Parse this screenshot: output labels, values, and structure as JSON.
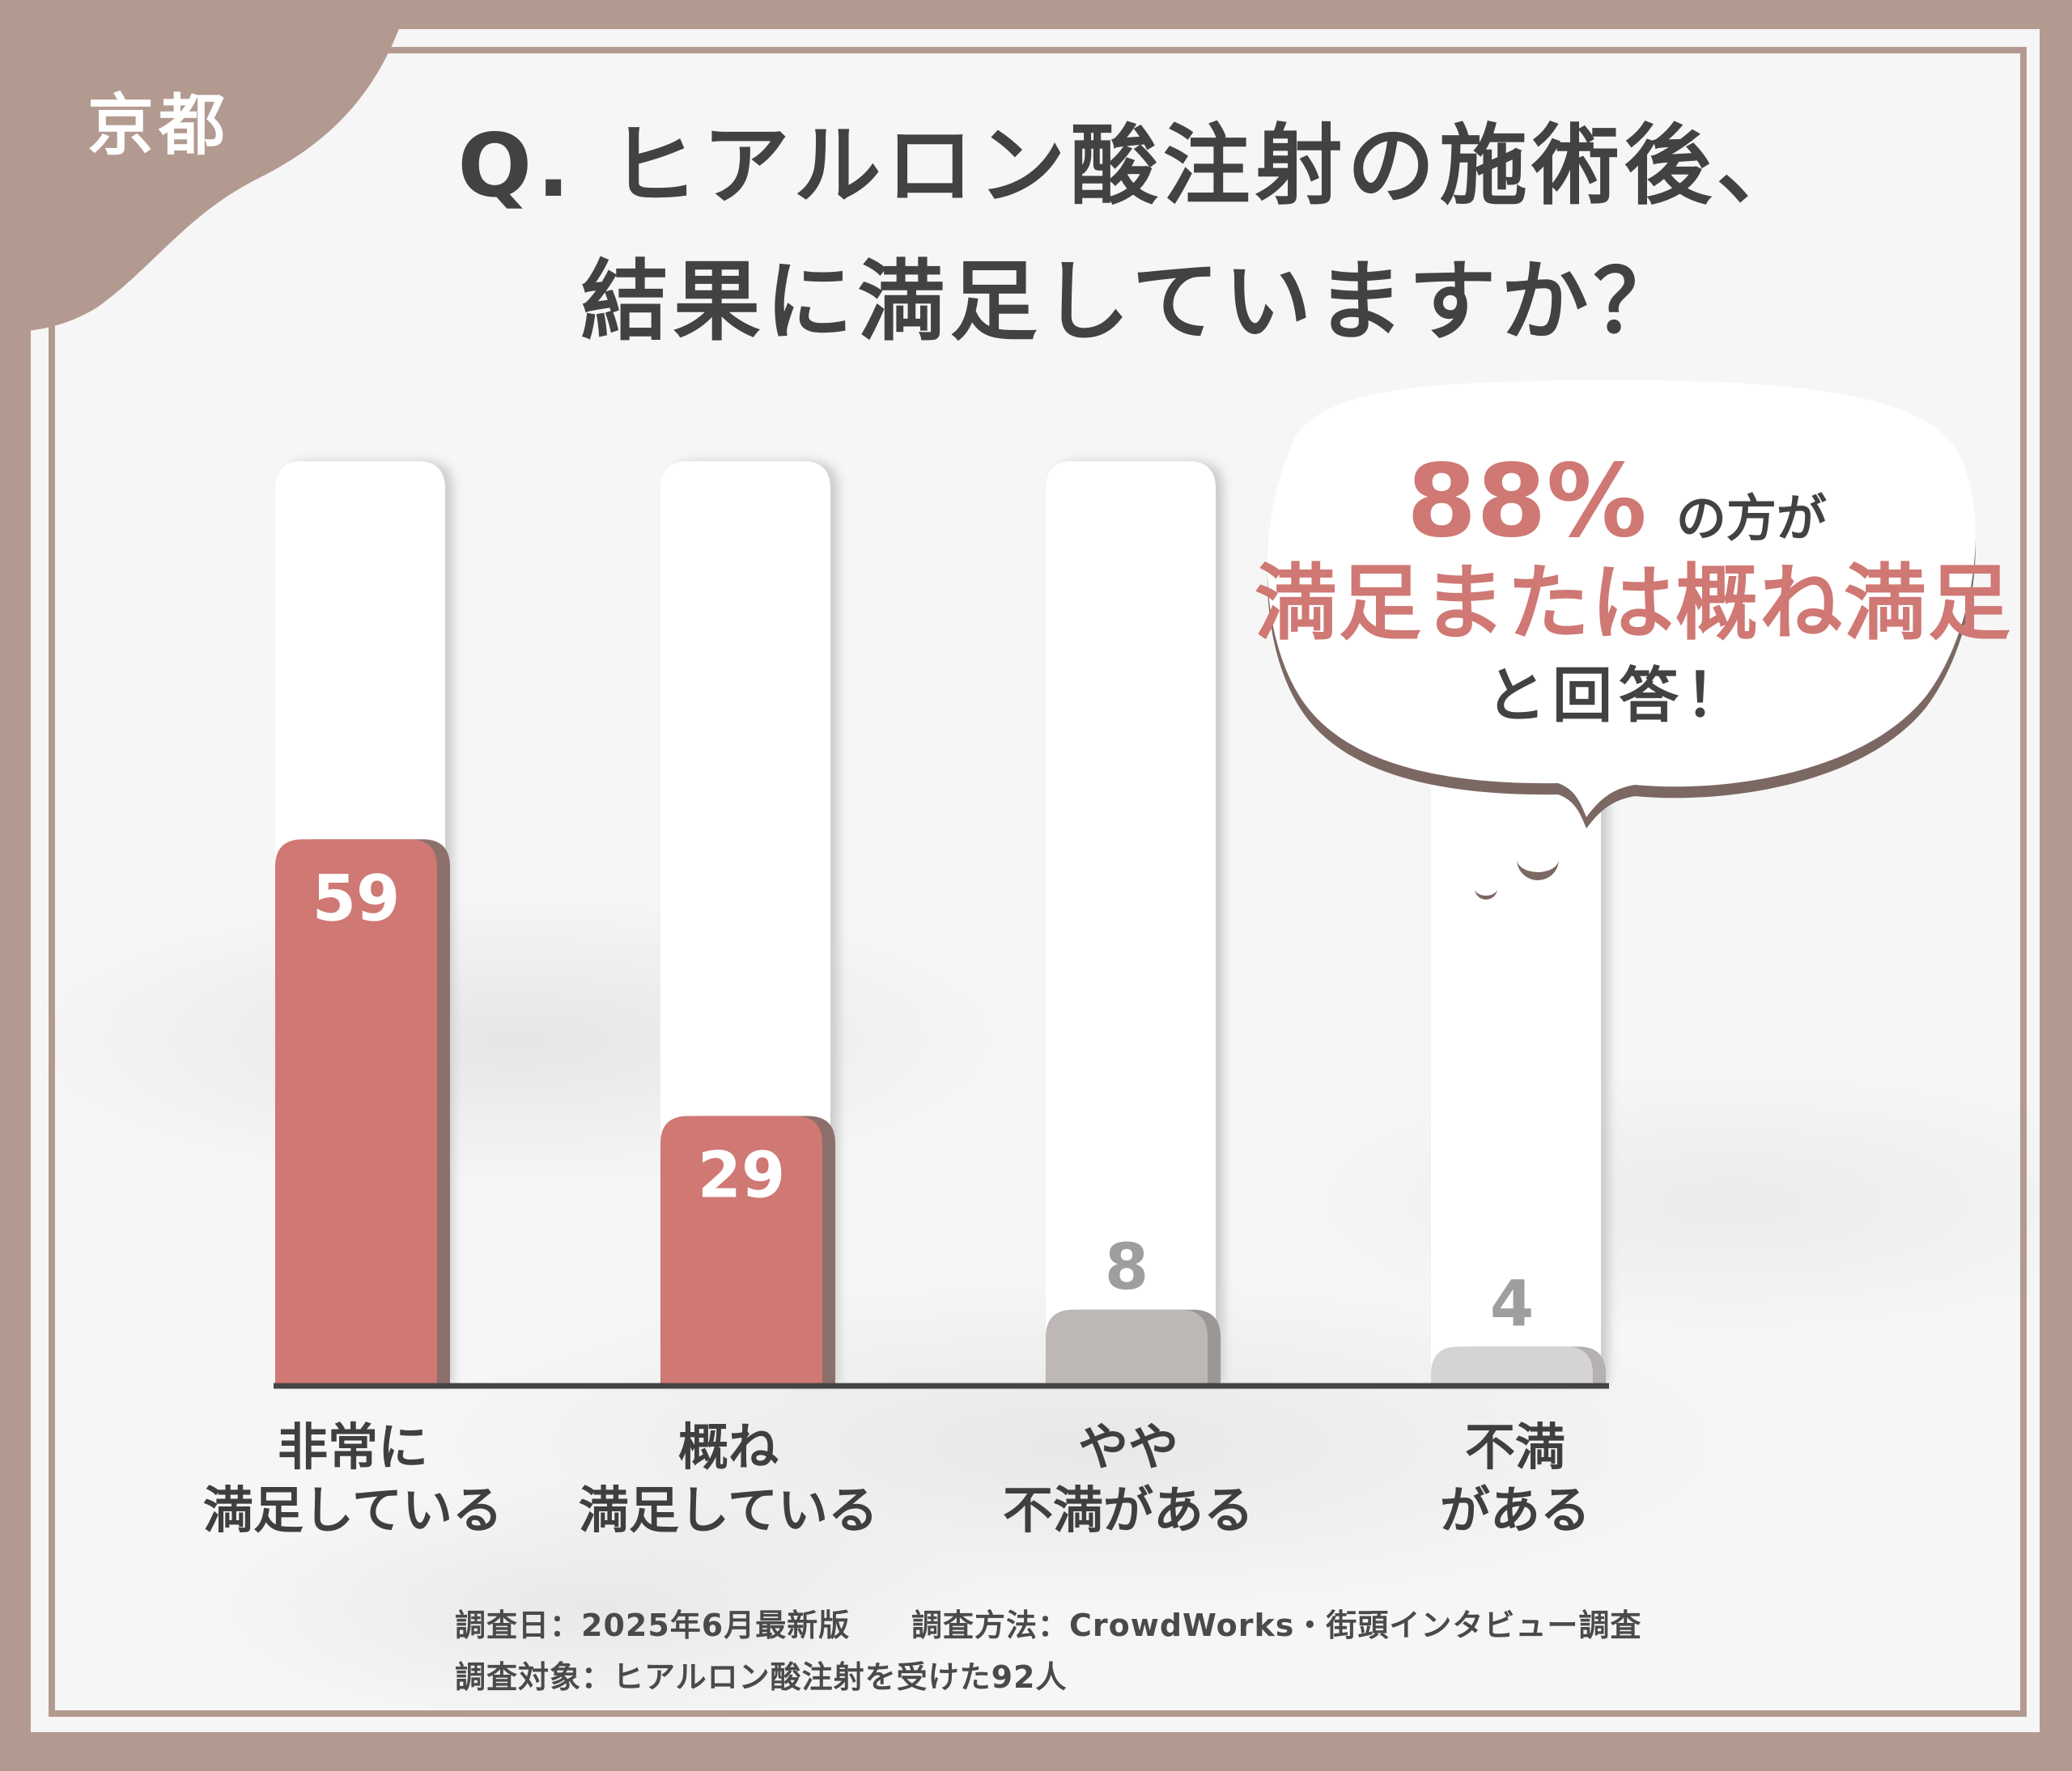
{
  "region_label": "京都",
  "title_lines": [
    "Q. ヒアルロン酸注射の施術後、",
    "結果に満足していますか？"
  ],
  "callout": {
    "percent": "88%",
    "percent_suffix": "の方が",
    "highlight": "満足または概ね満足",
    "answer": "と回答！"
  },
  "chart_data": {
    "type": "bar",
    "title": "Q. ヒアルロン酸注射の施術後、結果に満足していますか？",
    "categories": [
      "非常に 満足している",
      "概ね 満足している",
      "やや 不満がある",
      "不満 がある"
    ],
    "category_lines": [
      [
        "非常に",
        "満足している"
      ],
      [
        "概ね",
        "満足している"
      ],
      [
        "やや",
        "不満がある"
      ],
      [
        "不満",
        "がある"
      ]
    ],
    "values": [
      59,
      29,
      8,
      4
    ],
    "value_labels": [
      "59",
      "29",
      "8",
      "4"
    ],
    "ylim": [
      0,
      100
    ],
    "bar_colors": [
      "#cf7874",
      "#cf7874",
      "#bdb8b6",
      "#d6d4d3"
    ],
    "bar_shadow_colors": [
      "#8d6f6b",
      "#8d6f6b",
      "#9c9796",
      "#b4b1b0"
    ],
    "label_colors": [
      "#ffffff",
      "#ffffff",
      "#9e9e9e",
      "#9e9e9e"
    ],
    "grid": false,
    "legend": "none"
  },
  "footer": {
    "line1_left": "調査日：2025年6月最新版",
    "line1_right": "調査方法：CrowdWorks・街頭インタビュー調査",
    "line2": "調査対象：ヒアルロン酸注射を受けた92人"
  }
}
